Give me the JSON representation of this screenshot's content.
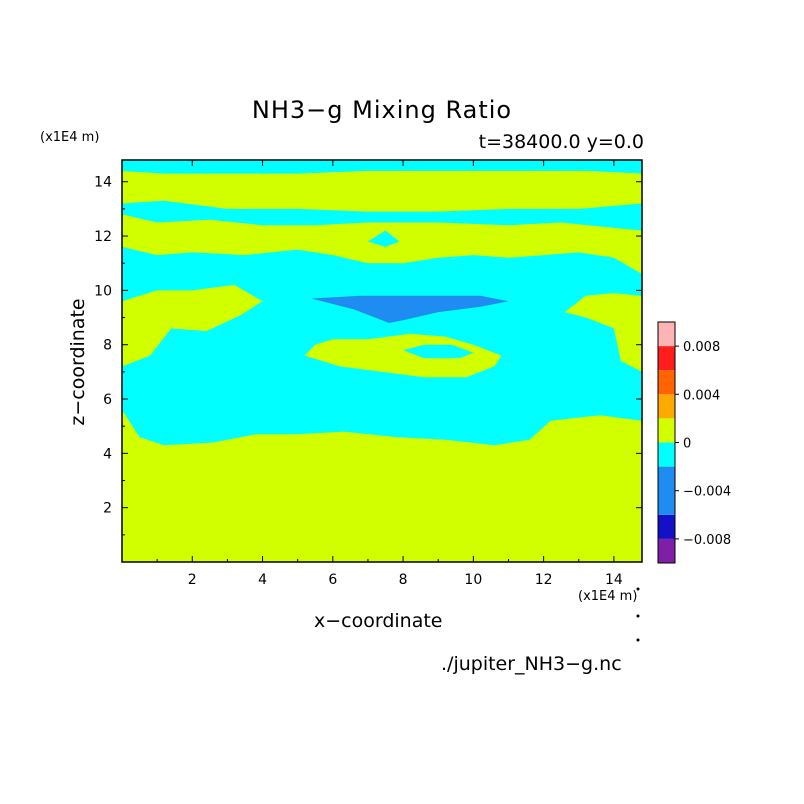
{
  "chart_data": {
    "type": "heatmap",
    "title": "NH3−g Mixing Ratio",
    "subtitle": "t=38400.0 y=0.0",
    "xlabel": "x−coordinate",
    "ylabel": "z−coordinate",
    "x_unit": "(x1E4 m)",
    "y_unit": "(x1E4 m)",
    "xlim": [
      0,
      14.8
    ],
    "ylim": [
      0,
      14.8
    ],
    "x_ticks": [
      2,
      4,
      6,
      8,
      10,
      12,
      14
    ],
    "y_ticks": [
      2,
      4,
      6,
      8,
      10,
      12,
      14
    ],
    "colorbar": {
      "levels": [
        -0.01,
        -0.008,
        -0.006,
        -0.004,
        -0.002,
        0,
        0.002,
        0.004,
        0.006,
        0.008,
        0.01
      ],
      "colors": [
        "#7f1fa8",
        "#1410c8",
        "#1e8cf0",
        "#00ffff",
        "#d2ff00",
        "#ffa800",
        "#ff6400",
        "#ff1e1e",
        "#ffb4b4"
      ],
      "bands": [
        {
          "from": -0.01,
          "to": -0.008,
          "color": "#7f1fa8"
        },
        {
          "from": -0.008,
          "to": -0.006,
          "color": "#1410c8"
        },
        {
          "from": -0.006,
          "to": -0.002,
          "color": "#1e8cf0"
        },
        {
          "from": -0.002,
          "to": 0,
          "color": "#00ffff"
        },
        {
          "from": 0,
          "to": 0.002,
          "color": "#d2ff00"
        },
        {
          "from": 0.002,
          "to": 0.004,
          "color": "#ffa800"
        },
        {
          "from": 0.004,
          "to": 0.006,
          "color": "#ff6400"
        },
        {
          "from": 0.006,
          "to": 0.008,
          "color": "#ff1e1e"
        },
        {
          "from": 0.008,
          "to": 0.01,
          "color": "#ffb4b4"
        }
      ],
      "tick_values": [
        0.008,
        0.004,
        0,
        -0.004,
        -0.008
      ],
      "tick_labels": [
        "0.008",
        "0.004",
        "0",
        "−0.004",
        "−0.008"
      ]
    },
    "background_value_color": "#00ffff",
    "regions": [
      {
        "name": "lower-layer",
        "color": "#d2ff00",
        "points": [
          [
            0,
            0
          ],
          [
            14.8,
            0
          ],
          [
            14.8,
            5.2
          ],
          [
            13.6,
            5.4
          ],
          [
            12.2,
            5.2
          ],
          [
            11.6,
            4.5
          ],
          [
            10.6,
            4.3
          ],
          [
            9.2,
            4.5
          ],
          [
            7.8,
            4.6
          ],
          [
            6.3,
            4.8
          ],
          [
            5.0,
            4.7
          ],
          [
            3.8,
            4.7
          ],
          [
            2.6,
            4.4
          ],
          [
            1.2,
            4.3
          ],
          [
            0.5,
            4.6
          ],
          [
            0,
            5.6
          ]
        ]
      },
      {
        "name": "upper-layer",
        "color": "#d2ff00",
        "points": [
          [
            0,
            13.2
          ],
          [
            1.2,
            13.3
          ],
          [
            3.0,
            13.0
          ],
          [
            5.0,
            13.0
          ],
          [
            7.0,
            12.9
          ],
          [
            9.0,
            12.9
          ],
          [
            11.0,
            13.0
          ],
          [
            13.0,
            13.0
          ],
          [
            14.8,
            13.2
          ],
          [
            14.8,
            14.3
          ],
          [
            13.2,
            14.4
          ],
          [
            11.0,
            14.4
          ],
          [
            9.0,
            14.4
          ],
          [
            7.0,
            14.4
          ],
          [
            5.0,
            14.3
          ],
          [
            3.0,
            14.3
          ],
          [
            1.2,
            14.3
          ],
          [
            0,
            14.4
          ]
        ]
      },
      {
        "name": "mid-upper-band",
        "color": "#d2ff00",
        "points": [
          [
            0,
            12.8
          ],
          [
            1.0,
            12.5
          ],
          [
            2.5,
            12.6
          ],
          [
            4.0,
            12.4
          ],
          [
            5.5,
            12.4
          ],
          [
            7.0,
            12.5
          ],
          [
            9.0,
            12.5
          ],
          [
            11.0,
            12.4
          ],
          [
            12.5,
            12.5
          ],
          [
            14.0,
            12.3
          ],
          [
            14.8,
            12.2
          ],
          [
            14.8,
            10.6
          ],
          [
            14.0,
            11.2
          ],
          [
            13.0,
            11.4
          ],
          [
            12.0,
            11.3
          ],
          [
            11.0,
            11.2
          ],
          [
            10.0,
            11.3
          ],
          [
            9.0,
            11.2
          ],
          [
            8.0,
            11.0
          ],
          [
            7.0,
            11.0
          ],
          [
            6.0,
            11.3
          ],
          [
            5.0,
            11.5
          ],
          [
            3.5,
            11.3
          ],
          [
            2.0,
            11.4
          ],
          [
            1.0,
            11.3
          ],
          [
            0,
            11.6
          ]
        ]
      },
      {
        "name": "left-middle-lobe",
        "color": "#d2ff00",
        "points": [
          [
            0,
            7.2
          ],
          [
            0.8,
            7.6
          ],
          [
            1.4,
            8.6
          ],
          [
            2.4,
            8.5
          ],
          [
            3.4,
            9.1
          ],
          [
            4.0,
            9.6
          ],
          [
            3.2,
            10.2
          ],
          [
            2.0,
            10.0
          ],
          [
            1.0,
            10.0
          ],
          [
            0,
            9.6
          ]
        ]
      },
      {
        "name": "center-lobe",
        "color": "#d2ff00",
        "points": [
          [
            5.2,
            7.6
          ],
          [
            6.2,
            7.2
          ],
          [
            7.4,
            7.0
          ],
          [
            8.6,
            6.8
          ],
          [
            9.8,
            6.8
          ],
          [
            10.6,
            7.2
          ],
          [
            10.8,
            7.6
          ],
          [
            10.0,
            8.0
          ],
          [
            9.2,
            8.3
          ],
          [
            8.2,
            8.4
          ],
          [
            7.0,
            8.2
          ],
          [
            6.0,
            8.2
          ],
          [
            5.5,
            8.0
          ]
        ]
      },
      {
        "name": "right-lobe",
        "color": "#d2ff00",
        "points": [
          [
            12.6,
            9.2
          ],
          [
            13.2,
            9.8
          ],
          [
            14.0,
            9.9
          ],
          [
            14.8,
            9.8
          ],
          [
            14.8,
            7.0
          ],
          [
            14.2,
            7.4
          ],
          [
            14.0,
            8.6
          ],
          [
            13.2,
            9.0
          ]
        ]
      },
      {
        "name": "cyan-hole-upper",
        "color": "#00ffff",
        "points": [
          [
            7.0,
            11.8
          ],
          [
            7.5,
            12.2
          ],
          [
            7.9,
            11.8
          ],
          [
            7.5,
            11.6
          ]
        ]
      },
      {
        "name": "cyan-hole-center",
        "color": "#00ffff",
        "points": [
          [
            8.0,
            7.8
          ],
          [
            8.6,
            7.5
          ],
          [
            9.6,
            7.5
          ],
          [
            10.0,
            7.7
          ],
          [
            9.4,
            8.0
          ],
          [
            8.6,
            8.0
          ]
        ]
      },
      {
        "name": "blue-patch",
        "color": "#1e8cf0",
        "points": [
          [
            5.4,
            9.7
          ],
          [
            6.8,
            9.8
          ],
          [
            8.5,
            9.8
          ],
          [
            10.2,
            9.8
          ],
          [
            11.0,
            9.6
          ],
          [
            10.2,
            9.4
          ],
          [
            9.0,
            9.2
          ],
          [
            8.0,
            8.9
          ],
          [
            7.6,
            8.8
          ],
          [
            7.2,
            9.0
          ],
          [
            6.6,
            9.3
          ],
          [
            6.0,
            9.5
          ]
        ]
      }
    ]
  },
  "annotation": {
    "source_file": "./jupiter_NH3−g.nc"
  }
}
